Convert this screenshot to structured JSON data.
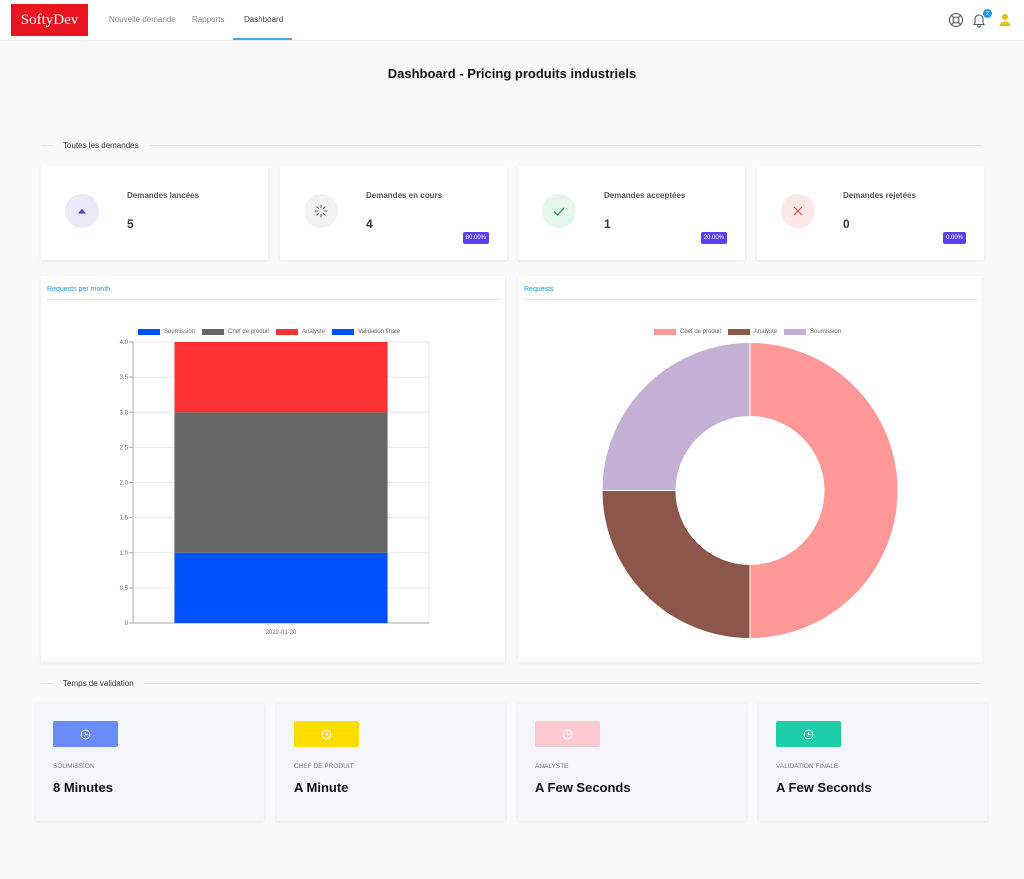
{
  "header": {
    "logo": "SoftyDev",
    "nav": [
      "Nouvelle demande",
      "Rapports",
      "Dashboard"
    ],
    "notification_count": "2",
    "icons": [
      "help-lifebuoy-icon",
      "bell-icon",
      "user-icon"
    ]
  },
  "page_title": "Dashboard - Pricing produits industriels",
  "sections": {
    "requests": "Toutes les demandes",
    "validation": "Temps de validation"
  },
  "stats": [
    {
      "label": "Demandes lancées",
      "value": "5",
      "badge": "",
      "icon": "triangle-up-icon",
      "icon_bg": "#ece9fb",
      "icon_color": "#4b3bbf"
    },
    {
      "label": "Demandes en cours",
      "value": "4",
      "badge": "80.00%",
      "icon": "spinner-icon",
      "icon_bg": "#f3f3f3",
      "icon_color": "#666666"
    },
    {
      "label": "Demandes acceptées",
      "value": "1",
      "badge": "20.00%",
      "icon": "check-icon",
      "icon_bg": "#e4f7ea",
      "icon_color": "#2e9e57"
    },
    {
      "label": "Demandes rejetées",
      "value": "0",
      "badge": "0.00%",
      "icon": "close-icon",
      "icon_bg": "#fde8e8",
      "icon_color": "#e04848"
    }
  ],
  "bar_chart": {
    "tab": "Requests per month",
    "legend": [
      {
        "name": "Soumission",
        "color": "#0052ff"
      },
      {
        "name": "Chef de produit",
        "color": "#666666"
      },
      {
        "name": "Analyste",
        "color": "#ff3333"
      },
      {
        "name": "Validation finale",
        "color": "#0052ff"
      }
    ]
  },
  "donut_chart": {
    "tab": "Requests",
    "legend": [
      {
        "name": "Chef de produit",
        "color": "#ff9896"
      },
      {
        "name": "Analyste",
        "color": "#8c564b"
      },
      {
        "name": "Soumission",
        "color": "#c5b0d5"
      }
    ]
  },
  "chart_data": [
    {
      "type": "bar",
      "stacked": true,
      "categories": [
        "2022-01-20"
      ],
      "series": [
        {
          "name": "Soumission",
          "values": [
            1
          ],
          "color": "#0052ff"
        },
        {
          "name": "Chef de produit",
          "values": [
            2
          ],
          "color": "#666666"
        },
        {
          "name": "Analyste",
          "values": [
            1
          ],
          "color": "#ff3333"
        },
        {
          "name": "Validation finale",
          "values": [
            0
          ],
          "color": "#0052ff"
        }
      ],
      "yticks": [
        "0",
        "0.5",
        "1.0",
        "1.5",
        "2.0",
        "2.5",
        "3.0",
        "3.5",
        "4.0"
      ],
      "ylim": [
        0,
        4
      ],
      "legend_position": "top",
      "grid": true
    },
    {
      "type": "pie",
      "donut": true,
      "labels": [
        "Chef de produit",
        "Analyste",
        "Soumission"
      ],
      "values": [
        2,
        1,
        1
      ],
      "colors": [
        "#ff9896",
        "#8c564b",
        "#c5b0d5"
      ],
      "legend_position": "top"
    }
  ],
  "validation_times": [
    {
      "label": "SOUMISSION",
      "value": "8 Minutes",
      "color": "#6b8cf5",
      "icon": "clock-icon"
    },
    {
      "label": "CHEF DE PRODUIT",
      "value": "A Minute",
      "color": "#ffdd00",
      "icon": "clock-icon"
    },
    {
      "label": "ANALYSTE",
      "value": "A Few Seconds",
      "color": "#ffcbd3",
      "icon": "clock-icon"
    },
    {
      "label": "VALIDATION FINALE",
      "value": "A Few Seconds",
      "color": "#1ccfa8",
      "icon": "clock-icon"
    }
  ]
}
